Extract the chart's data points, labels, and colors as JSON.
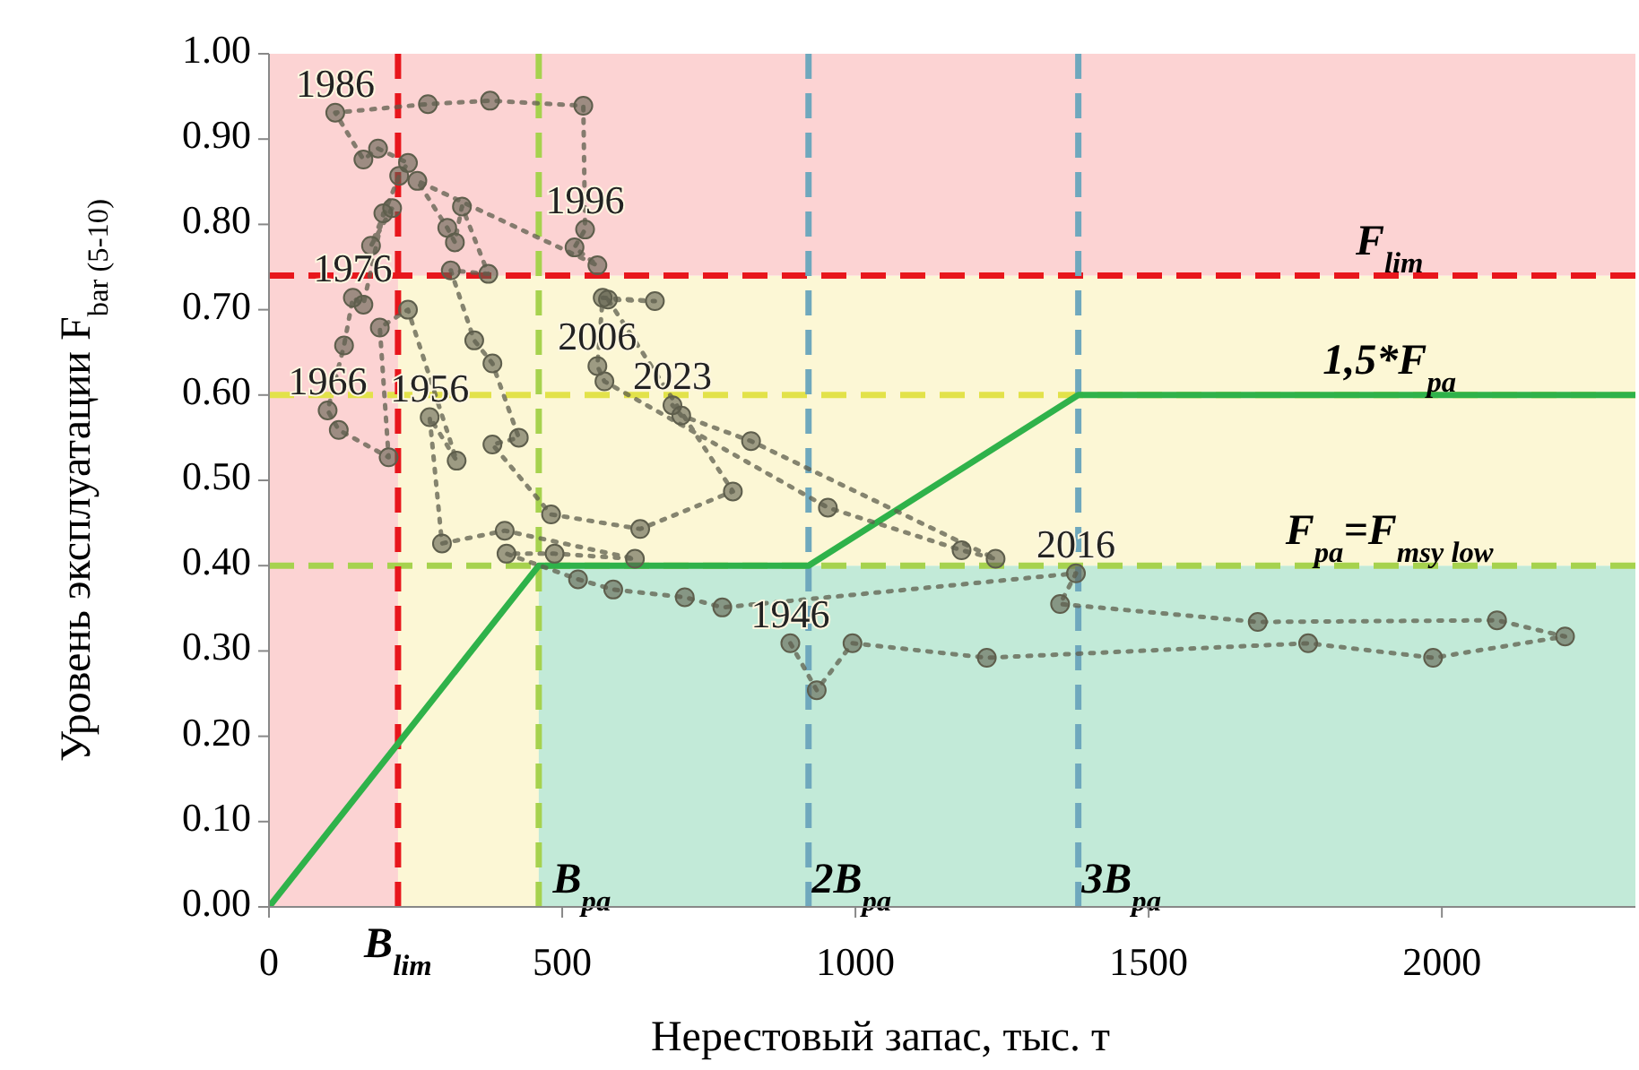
{
  "chart_data": {
    "type": "line",
    "xlabel": "Нерестовый запас, тыс. т",
    "ylabel": "Уровень эксплуатации F$_{bar (5-10)}$",
    "xlim": [
      0,
      2330
    ],
    "xticks": [
      0,
      500,
      1000,
      1500,
      2000
    ],
    "ylim": [
      0,
      1
    ],
    "yticks": [
      {
        "value": 0,
        "label": "0.00"
      },
      {
        "value": 0.1,
        "label": "0.10"
      },
      {
        "value": 0.2,
        "label": "0.20"
      },
      {
        "value": 0.3,
        "label": "0.30"
      },
      {
        "value": 0.4,
        "label": "0.40"
      },
      {
        "value": 0.5,
        "label": "0.50"
      },
      {
        "value": 0.6,
        "label": "0.60"
      },
      {
        "value": 0.7,
        "label": "0.70"
      },
      {
        "value": 0.8,
        "label": "0.80"
      },
      {
        "value": 0.9,
        "label": "0.90"
      },
      {
        "value": 1,
        "label": "1.00"
      }
    ],
    "grid": false,
    "bands": [
      {
        "axis": "y",
        "from": 0,
        "to": 0.4,
        "color": "#c2ead8"
      },
      {
        "axis": "y",
        "from": 0.4,
        "to": 0.74,
        "color": "#fcf7d5"
      },
      {
        "axis": "x",
        "from": 0,
        "to": 460,
        "color": "#fcf7d5"
      },
      {
        "axis": "y",
        "from": 0.74,
        "to": 1,
        "color": "#fcd3d3"
      },
      {
        "axis": "x",
        "from": 0,
        "to": 220,
        "color": "#fcd3d3"
      }
    ],
    "ref_lines": [
      {
        "axis": "y",
        "value": 0.74,
        "label": "F$_{lim}$",
        "color": "#e8161c",
        "line_style": "dashed"
      },
      {
        "axis": "y",
        "value": 0.6,
        "label": "1,5*F$_{pa}$",
        "color": "#e2e24a",
        "line_style": "dashed"
      },
      {
        "axis": "y",
        "value": 0.4,
        "label": "F$_{pa}$=F$_{msy low}$",
        "color": "#a6d24e",
        "line_style": "dashed"
      },
      {
        "axis": "x",
        "value": 220,
        "label": "B$_{lim}$",
        "color": "#e8161c",
        "line_style": "dashed"
      },
      {
        "axis": "x",
        "value": 460,
        "label": "B$_{pa}$",
        "color": "#a6d24e",
        "line_style": "dashed"
      },
      {
        "axis": "x",
        "value": 920,
        "label": "2B$_{pa}$",
        "color": "#6fa8bd",
        "line_style": "dashed"
      },
      {
        "axis": "x",
        "value": 1380,
        "label": "3B$_{pa}$",
        "color": "#6fa8bd",
        "line_style": "dashed"
      }
    ],
    "series": [
      {
        "color": "#2fb24a",
        "marker": "none",
        "line_style": "solid",
        "x": [
          0,
          460,
          920,
          1380,
          2330
        ],
        "values": [
          0,
          0.4,
          0.4,
          0.6,
          0.6
        ]
      },
      {
        "color": "#5e5e4c",
        "marker": "circle",
        "line_style": "dotted",
        "x": [
          889,
          934,
          995,
          1224,
          1772,
          1985,
          2210,
          2094,
          1686,
          1349,
          1376,
          773,
          709,
          587,
          527,
          405,
          487,
          624,
          402,
          295,
          274,
          320,
          237,
          189,
          204,
          119,
          100,
          128,
          143,
          161,
          195,
          210,
          174,
          222,
          237,
          186,
          161,
          113,
          271,
          377,
          536,
          539,
          521,
          560,
          253,
          304,
          317,
          329,
          374,
          310,
          350,
          381,
          426,
          381,
          481,
          633,
          791,
          578,
          658,
          569,
          560,
          572,
          953,
          1181,
          1239,
          822,
          703,
          688
        ],
        "values": [
          0.309,
          0.254,
          0.309,
          0.292,
          0.309,
          0.292,
          0.317,
          0.336,
          0.334,
          0.355,
          0.391,
          0.351,
          0.363,
          0.372,
          0.384,
          0.414,
          0.414,
          0.408,
          0.441,
          0.426,
          0.574,
          0.523,
          0.7,
          0.679,
          0.527,
          0.559,
          0.582,
          0.658,
          0.714,
          0.706,
          0.813,
          0.819,
          0.775,
          0.857,
          0.872,
          0.889,
          0.876,
          0.931,
          0.941,
          0.945,
          0.939,
          0.794,
          0.773,
          0.752,
          0.851,
          0.796,
          0.779,
          0.821,
          0.742,
          0.746,
          0.664,
          0.637,
          0.55,
          0.542,
          0.46,
          0.443,
          0.487,
          0.712,
          0.71,
          0.714,
          0.634,
          0.616,
          0.468,
          0.418,
          0.408,
          0.546,
          0.576,
          0.588
        ]
      }
    ],
    "annotations": [
      {
        "text": "1946",
        "x": 889,
        "y": 0.309
      },
      {
        "text": "1956",
        "x": 274,
        "y": 0.574
      },
      {
        "text": "1966",
        "x": 100,
        "y": 0.582
      },
      {
        "text": "1976",
        "x": 143,
        "y": 0.714
      },
      {
        "text": "1986",
        "x": 113,
        "y": 0.931
      },
      {
        "text": "1996",
        "x": 539,
        "y": 0.794
      },
      {
        "text": "2006",
        "x": 560,
        "y": 0.634
      },
      {
        "text": "2016",
        "x": 1376,
        "y": 0.391
      },
      {
        "text": "2023",
        "x": 688,
        "y": 0.588
      }
    ]
  }
}
